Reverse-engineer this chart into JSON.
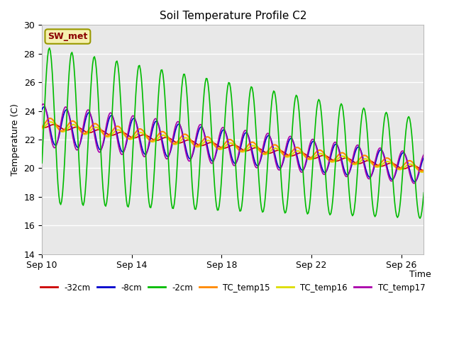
{
  "title": "Soil Temperature Profile C2",
  "xlabel": "Time",
  "ylabel": "Temperature (C)",
  "ylim": [
    14,
    30
  ],
  "xlim": [
    0,
    17
  ],
  "annotation": "SW_met",
  "bg_color": "#e8e8e8",
  "fig_bg": "#ffffff",
  "grid_color": "#ffffff",
  "series": {
    "-32cm": {
      "color": "#cc0000",
      "lw": 1.2
    },
    "-8cm": {
      "color": "#0000cc",
      "lw": 1.2
    },
    "-2cm": {
      "color": "#00bb00",
      "lw": 1.2
    },
    "TC_temp15": {
      "color": "#ff8800",
      "lw": 1.5
    },
    "TC_temp16": {
      "color": "#dddd00",
      "lw": 1.5
    },
    "TC_temp17": {
      "color": "#aa00aa",
      "lw": 1.2
    }
  },
  "xtick_labels": [
    "Sep 10",
    "Sep 14",
    "Sep 18",
    "Sep 22",
    "Sep 26"
  ],
  "xtick_positions": [
    0,
    4,
    8,
    12,
    16
  ]
}
